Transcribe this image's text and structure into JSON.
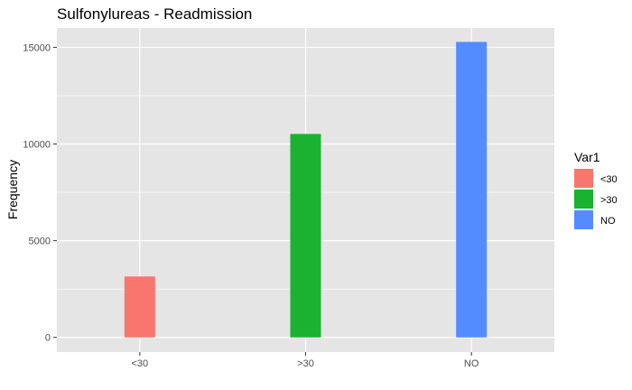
{
  "chart_data": {
    "type": "bar",
    "title": "Sulfonylureas - Readmission",
    "xlabel": "",
    "ylabel": "Frequency",
    "categories": [
      "<30",
      ">30",
      "NO"
    ],
    "values": [
      3150,
      10520,
      15280
    ],
    "colors": [
      "#F8766D",
      "#1AB230",
      "#538CFF"
    ],
    "ylim": [
      -760,
      16000
    ],
    "yticks": [
      0,
      5000,
      10000,
      15000
    ],
    "ytick_labels": [
      "0",
      "5000",
      "10000",
      "15000"
    ],
    "grid": true,
    "panel_background": "#E5E5E5",
    "legend": {
      "title": "Var1",
      "position": "right",
      "entries": [
        "<30",
        ">30",
        "NO"
      ]
    }
  }
}
